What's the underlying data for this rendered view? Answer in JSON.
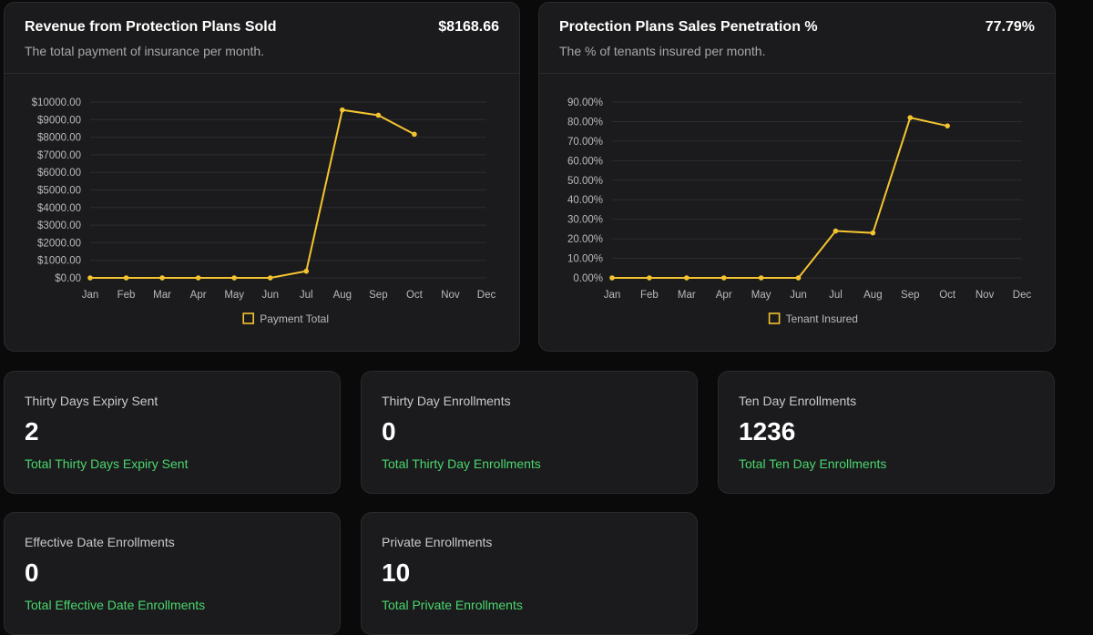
{
  "charts": [
    {
      "title": "Revenue from Protection Plans Sold",
      "total": "$8168.66",
      "subtitle": "The total payment of insurance per month.",
      "chart_data": {
        "type": "line",
        "categories": [
          "Jan",
          "Feb",
          "Mar",
          "Apr",
          "May",
          "Jun",
          "Jul",
          "Aug",
          "Sep",
          "Oct",
          "Nov",
          "Dec"
        ],
        "series": [
          {
            "name": "Payment Total",
            "values": [
              0,
              0,
              0,
              0,
              0,
              0,
              380,
              9550,
              9250,
              8168.66,
              null,
              null
            ]
          }
        ],
        "ylim": [
          0,
          10000
        ],
        "yticks": [
          "$0.00",
          "$1000.00",
          "$2000.00",
          "$3000.00",
          "$4000.00",
          "$5000.00",
          "$6000.00",
          "$7000.00",
          "$8000.00",
          "$9000.00",
          "$10000.00"
        ],
        "legend": "bottom",
        "color": "#f4c430"
      }
    },
    {
      "title": "Protection Plans Sales Penetration %",
      "total": "77.79%",
      "subtitle": "The % of tenants insured per month.",
      "chart_data": {
        "type": "line",
        "categories": [
          "Jan",
          "Feb",
          "Mar",
          "Apr",
          "May",
          "Jun",
          "Jul",
          "Aug",
          "Sep",
          "Oct",
          "Nov",
          "Dec"
        ],
        "series": [
          {
            "name": "Tenant Insured",
            "values": [
              0,
              0,
              0,
              0,
              0,
              0,
              24,
              23,
              82,
              77.79,
              null,
              null
            ]
          }
        ],
        "ylim": [
          0,
          90
        ],
        "yticks": [
          "0.00%",
          "10.00%",
          "20.00%",
          "30.00%",
          "40.00%",
          "50.00%",
          "60.00%",
          "70.00%",
          "80.00%",
          "90.00%"
        ],
        "legend": "bottom",
        "color": "#f4c430"
      }
    }
  ],
  "stats": [
    {
      "label": "Thirty Days Expiry Sent",
      "value": "2",
      "foot": "Total Thirty Days Expiry Sent"
    },
    {
      "label": "Thirty Day Enrollments",
      "value": "0",
      "foot": "Total Thirty Day Enrollments"
    },
    {
      "label": "Ten Day Enrollments",
      "value": "1236",
      "foot": "Total Ten Day Enrollments"
    },
    {
      "label": "Effective Date Enrollments",
      "value": "0",
      "foot": "Total Effective Date Enrollments"
    },
    {
      "label": "Private Enrollments",
      "value": "10",
      "foot": "Total Private Enrollments"
    }
  ]
}
